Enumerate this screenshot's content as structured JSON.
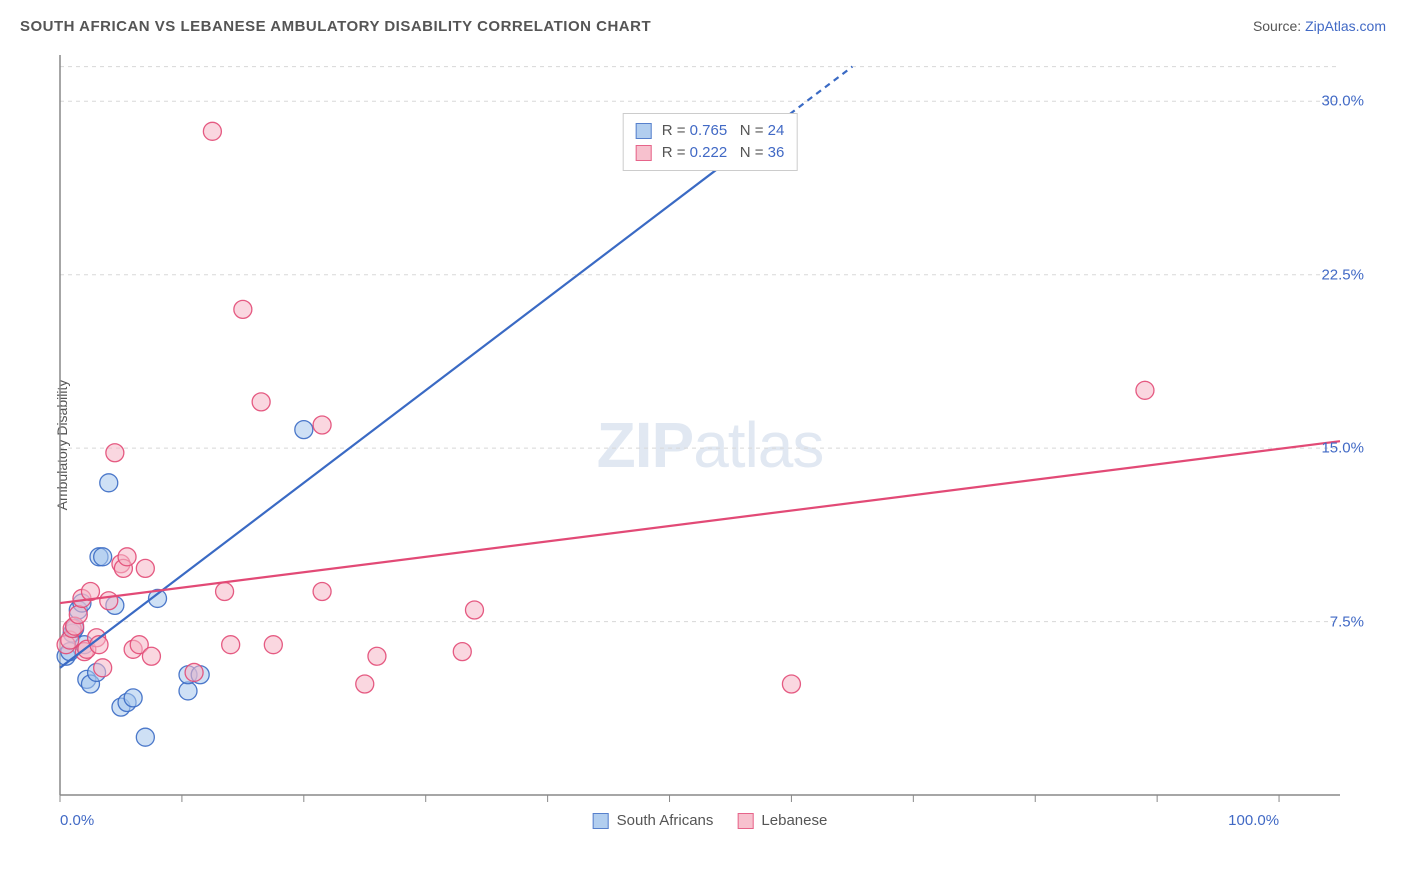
{
  "title": "SOUTH AFRICAN VS LEBANESE AMBULATORY DISABILITY CORRELATION CHART",
  "source_prefix": "Source: ",
  "source_name": "ZipAtlas.com",
  "ylabel": "Ambulatory Disability",
  "watermark_bold": "ZIP",
  "watermark_light": "atlas",
  "colors": {
    "series1_fill": "#a5c6ed",
    "series1_stroke": "#3a6ac4",
    "series2_fill": "#f6b7c6",
    "series2_stroke": "#e24a76",
    "axis": "#888888",
    "grid": "#d8d8d8",
    "tick_text": "#4169c5",
    "title_text": "#555555"
  },
  "plot": {
    "x_min": 0,
    "x_max": 105,
    "y_min": 0,
    "y_max": 32,
    "x_tick_minor_step": 10,
    "y_gridlines": [
      7.5,
      15.0,
      22.5,
      30.0,
      31.5
    ],
    "x_ticklabels": [
      {
        "v": 0,
        "label": "0.0%"
      },
      {
        "v": 100,
        "label": "100.0%"
      }
    ],
    "y_ticklabels": [
      {
        "v": 7.5,
        "label": "7.5%"
      },
      {
        "v": 15.0,
        "label": "15.0%"
      },
      {
        "v": 22.5,
        "label": "22.5%"
      },
      {
        "v": 30.0,
        "label": "30.0%"
      }
    ]
  },
  "series": [
    {
      "name": "South Africans",
      "color_key": "series1",
      "stats": {
        "R": "0.765",
        "N": "24"
      },
      "trend": {
        "x1": 0,
        "y1": 5.5,
        "x2": 65,
        "y2": 31.5,
        "dash_after_x": 57
      },
      "points": [
        [
          0.5,
          6.0
        ],
        [
          0.8,
          6.2
        ],
        [
          1.0,
          7.0
        ],
        [
          1.2,
          7.2
        ],
        [
          1.5,
          8.0
        ],
        [
          1.8,
          8.3
        ],
        [
          2.0,
          6.5
        ],
        [
          2.2,
          5.0
        ],
        [
          2.5,
          4.8
        ],
        [
          3.0,
          5.3
        ],
        [
          3.2,
          10.3
        ],
        [
          3.5,
          10.3
        ],
        [
          4.0,
          13.5
        ],
        [
          4.5,
          8.2
        ],
        [
          5.0,
          3.8
        ],
        [
          5.5,
          4.0
        ],
        [
          6.0,
          4.2
        ],
        [
          7.0,
          2.5
        ],
        [
          8.0,
          8.5
        ],
        [
          10.5,
          4.5
        ],
        [
          10.5,
          5.2
        ],
        [
          11.5,
          5.2
        ],
        [
          20.0,
          15.8
        ],
        [
          51.0,
          28.8
        ]
      ]
    },
    {
      "name": "Lebanese",
      "color_key": "series2",
      "stats": {
        "R": "0.222",
        "N": "36"
      },
      "trend": {
        "x1": 0,
        "y1": 8.3,
        "x2": 105,
        "y2": 15.3,
        "dash_after_x": null
      },
      "points": [
        [
          0.5,
          6.5
        ],
        [
          0.8,
          6.7
        ],
        [
          1.0,
          7.2
        ],
        [
          1.2,
          7.3
        ],
        [
          1.5,
          7.8
        ],
        [
          1.8,
          8.5
        ],
        [
          2.0,
          6.2
        ],
        [
          2.2,
          6.3
        ],
        [
          2.5,
          8.8
        ],
        [
          3.0,
          6.8
        ],
        [
          3.2,
          6.5
        ],
        [
          3.5,
          5.5
        ],
        [
          4.0,
          8.4
        ],
        [
          4.5,
          14.8
        ],
        [
          5.0,
          10.0
        ],
        [
          5.2,
          9.8
        ],
        [
          5.5,
          10.3
        ],
        [
          6.0,
          6.3
        ],
        [
          6.5,
          6.5
        ],
        [
          7.0,
          9.8
        ],
        [
          7.5,
          6.0
        ],
        [
          11.0,
          5.3
        ],
        [
          12.5,
          28.7
        ],
        [
          13.5,
          8.8
        ],
        [
          14.0,
          6.5
        ],
        [
          15.0,
          21.0
        ],
        [
          16.5,
          17.0
        ],
        [
          17.5,
          6.5
        ],
        [
          21.5,
          16.0
        ],
        [
          21.5,
          8.8
        ],
        [
          25.0,
          4.8
        ],
        [
          26.0,
          6.0
        ],
        [
          34.0,
          8.0
        ],
        [
          60.0,
          4.8
        ],
        [
          89.0,
          17.5
        ],
        [
          33.0,
          6.2
        ]
      ]
    }
  ],
  "bottom_legend": [
    {
      "label": "South Africans",
      "color_key": "series1"
    },
    {
      "label": "Lebanese",
      "color_key": "series2"
    }
  ],
  "stats_legend_labels": {
    "R": "R =",
    "N": "N ="
  }
}
